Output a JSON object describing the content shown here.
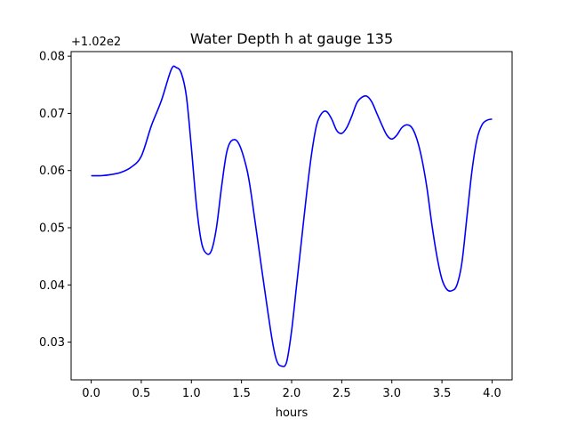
{
  "chart_data": {
    "type": "line",
    "title": "Water Depth h at gauge 135",
    "xlabel": "hours",
    "ylabel": "",
    "y_offset_label": "+1.02e2",
    "y_offset": 102,
    "xlim": [
      -0.2,
      4.2
    ],
    "ylim": [
      0.0234,
      0.0808
    ],
    "x_ticks": [
      0.0,
      0.5,
      1.0,
      1.5,
      2.0,
      2.5,
      3.0,
      3.5,
      4.0
    ],
    "x_tick_labels": [
      "0.0",
      "0.5",
      "1.0",
      "1.5",
      "2.0",
      "2.5",
      "3.0",
      "3.5",
      "4.0"
    ],
    "y_ticks": [
      0.03,
      0.04,
      0.05,
      0.06,
      0.07,
      0.08
    ],
    "y_tick_labels": [
      "0.03",
      "0.04",
      "0.05",
      "0.06",
      "0.07",
      "0.08"
    ],
    "grid": false,
    "line_color": "#0000ff",
    "series": [
      {
        "x": [
          0.0,
          0.1,
          0.2,
          0.3,
          0.4,
          0.5,
          0.6,
          0.7,
          0.8,
          0.85,
          0.9,
          0.95,
          1.0,
          1.05,
          1.1,
          1.15,
          1.2,
          1.25,
          1.3,
          1.35,
          1.4,
          1.47,
          1.55,
          1.6,
          1.7,
          1.8,
          1.85,
          1.9,
          1.95,
          2.0,
          2.05,
          2.1,
          2.15,
          2.2,
          2.25,
          2.3,
          2.35,
          2.4,
          2.45,
          2.5,
          2.55,
          2.6,
          2.65,
          2.7,
          2.75,
          2.8,
          2.85,
          2.9,
          2.95,
          3.0,
          3.05,
          3.1,
          3.15,
          3.2,
          3.25,
          3.3,
          3.35,
          3.4,
          3.45,
          3.5,
          3.55,
          3.6,
          3.65,
          3.7,
          3.75,
          3.8,
          3.85,
          3.9,
          3.95,
          4.0
        ],
        "y": [
          0.0591,
          0.0591,
          0.0593,
          0.0597,
          0.0606,
          0.0625,
          0.0678,
          0.0722,
          0.0777,
          0.078,
          0.077,
          0.073,
          0.064,
          0.054,
          0.0475,
          0.0455,
          0.046,
          0.05,
          0.057,
          0.063,
          0.0652,
          0.0648,
          0.0605,
          0.0555,
          0.043,
          0.031,
          0.0268,
          0.0258,
          0.0265,
          0.032,
          0.04,
          0.048,
          0.056,
          0.063,
          0.068,
          0.07,
          0.0703,
          0.069,
          0.067,
          0.0665,
          0.0675,
          0.0695,
          0.0718,
          0.0728,
          0.073,
          0.072,
          0.07,
          0.068,
          0.0662,
          0.0655,
          0.0662,
          0.0675,
          0.068,
          0.0675,
          0.0655,
          0.062,
          0.057,
          0.0505,
          0.045,
          0.041,
          0.0392,
          0.039,
          0.04,
          0.044,
          0.052,
          0.06,
          0.0655,
          0.068,
          0.0688,
          0.069
        ]
      }
    ]
  }
}
